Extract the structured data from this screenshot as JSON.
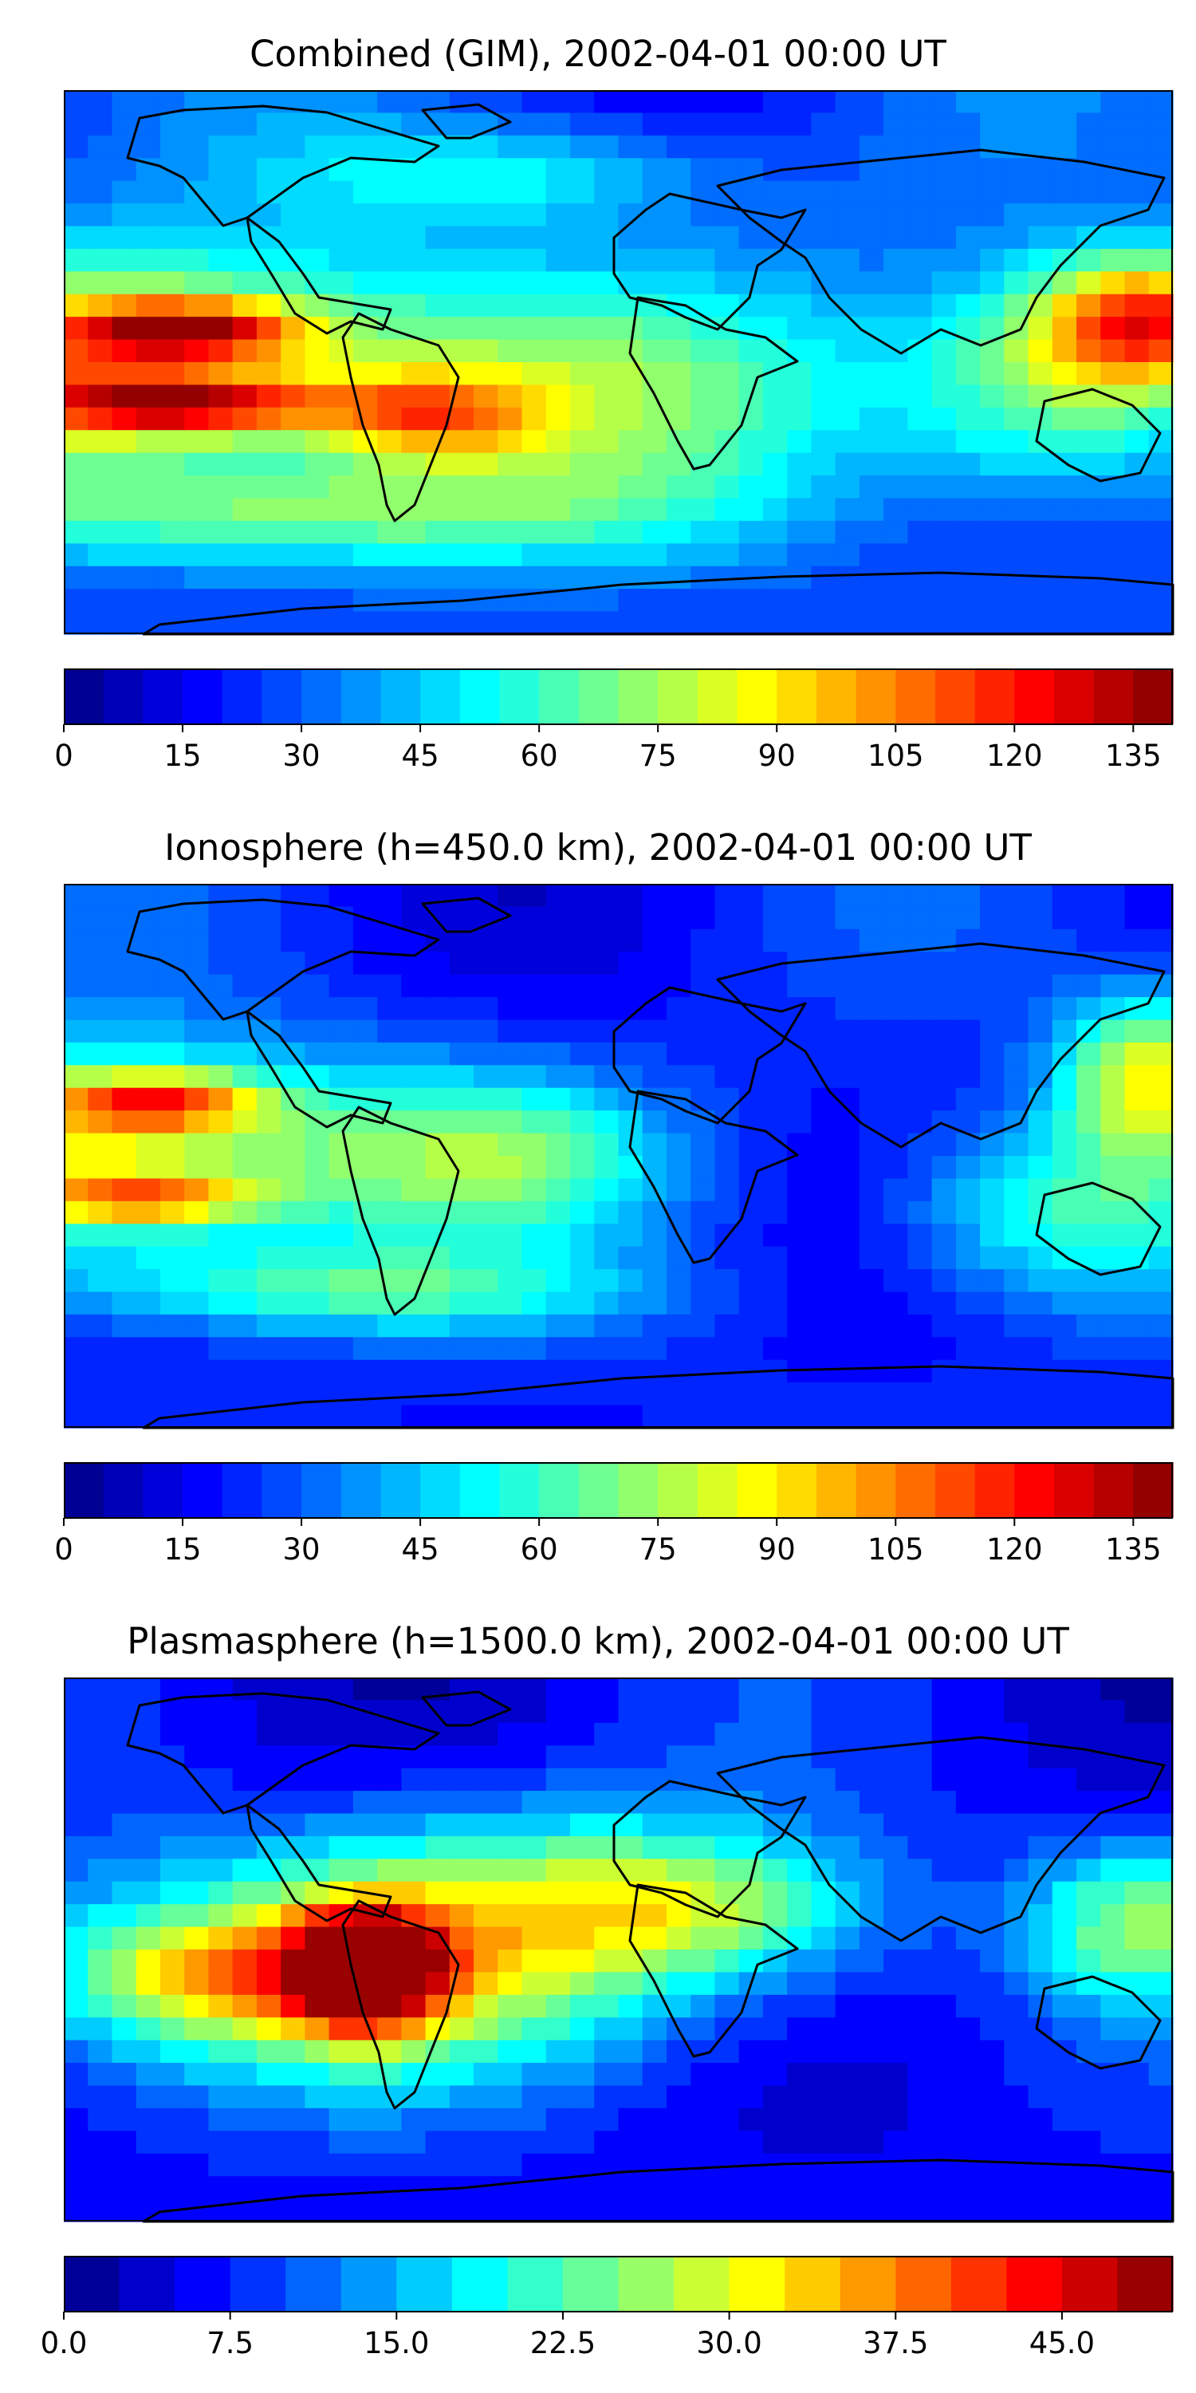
{
  "panels": [
    {
      "title": "Combined (GIM), 2002-04-01 00:00 UT",
      "colorbar": {
        "min": 0,
        "max": 140,
        "levels": 28,
        "ticks": [
          "0",
          "15",
          "30",
          "45",
          "60",
          "75",
          "90",
          "105",
          "120",
          "135"
        ],
        "tick_values": [
          0,
          15,
          30,
          45,
          60,
          75,
          90,
          105,
          120,
          135
        ]
      }
    },
    {
      "title": "Ionosphere  (h=450.0 km), 2002-04-01 00:00 UT",
      "colorbar": {
        "min": 0,
        "max": 140,
        "levels": 28,
        "ticks": [
          "0",
          "15",
          "30",
          "45",
          "60",
          "75",
          "90",
          "105",
          "120",
          "135"
        ],
        "tick_values": [
          0,
          15,
          30,
          45,
          60,
          75,
          90,
          105,
          120,
          135
        ]
      }
    },
    {
      "title": "Plasmasphere (h=1500.0 km), 2002-04-01 00:00 UT",
      "colorbar": {
        "min": 0,
        "max": 50,
        "levels": 20,
        "ticks": [
          "0.0",
          "7.5",
          "15.0",
          "22.5",
          "30.0",
          "37.5",
          "45.0"
        ],
        "tick_values": [
          0,
          7.5,
          15,
          22.5,
          30,
          37.5,
          45
        ]
      }
    }
  ],
  "colormap": "jet"
}
